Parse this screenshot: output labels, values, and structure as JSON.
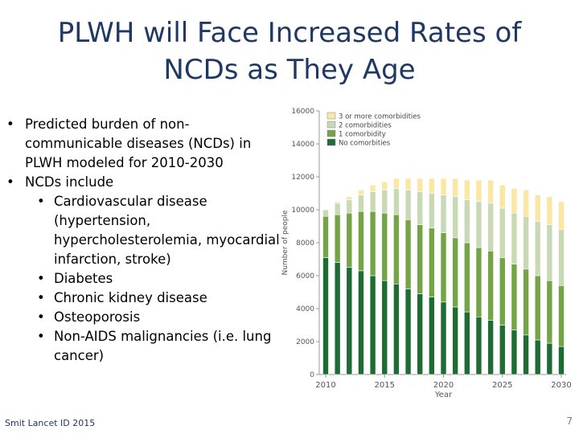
{
  "title": {
    "line1": "PLWH will Face Increased Rates of",
    "line2": "NCDs as They Age"
  },
  "bullets": [
    {
      "level": 1,
      "text": "Predicted burden of non-communicable diseases (NCDs) in PLWH modeled for 2010-2030"
    },
    {
      "level": 1,
      "text": "NCDs include"
    },
    {
      "level": 2,
      "text": "Cardiovascular disease (hypertension, hypercholesterolemia, myocardial infarction, stroke)"
    },
    {
      "level": 2,
      "text": "Diabetes"
    },
    {
      "level": 2,
      "text": "Chronic kidney disease"
    },
    {
      "level": 2,
      "text": "Osteoporosis"
    },
    {
      "level": 2,
      "text": "Non-AIDS malignancies (i.e. lung cancer)"
    }
  ],
  "footer": {
    "citation": "Smit Lancet ID 2015",
    "page_number": "7"
  },
  "chart_data": {
    "type": "bar",
    "stacked": true,
    "title": "",
    "xlabel": "Year",
    "ylabel": "Number of people",
    "ylim": [
      0,
      16000
    ],
    "yticks": [
      0,
      2000,
      4000,
      6000,
      8000,
      10000,
      12000,
      14000,
      16000
    ],
    "ytick_labels": [
      "0",
      "2000",
      "4000",
      "6000",
      "8000",
      "10000",
      "12000",
      "14000",
      "16000"
    ],
    "xticks": [
      2010,
      2015,
      2020,
      2025,
      2030
    ],
    "categories": [
      2010,
      2011,
      2012,
      2013,
      2014,
      2015,
      2016,
      2017,
      2018,
      2019,
      2020,
      2021,
      2022,
      2023,
      2024,
      2025,
      2026,
      2027,
      2028,
      2029,
      2030
    ],
    "legend_position": "top-left",
    "series": [
      {
        "name": "No comorbities",
        "color": "#1e6b34",
        "values": [
          7100,
          6800,
          6500,
          6300,
          6000,
          5700,
          5500,
          5200,
          4900,
          4700,
          4400,
          4100,
          3800,
          3500,
          3300,
          3000,
          2700,
          2400,
          2100,
          1900,
          1700
        ]
      },
      {
        "name": "1 comorbidity",
        "color": "#74a445",
        "values": [
          2500,
          2900,
          3300,
          3600,
          3900,
          4100,
          4200,
          4200,
          4200,
          4200,
          4200,
          4200,
          4200,
          4200,
          4200,
          4100,
          4000,
          4000,
          3900,
          3800,
          3700
        ]
      },
      {
        "name": "2 comorbidities",
        "color": "#c9d9b5",
        "values": [
          400,
          700,
          800,
          1000,
          1200,
          1400,
          1600,
          1800,
          2000,
          2100,
          2300,
          2500,
          2600,
          2800,
          2900,
          3000,
          3100,
          3200,
          3300,
          3400,
          3400
        ]
      },
      {
        "name": "3 or more comorbidities",
        "color": "#fbe6a3",
        "values": [
          0,
          100,
          200,
          300,
          400,
          500,
          600,
          700,
          800,
          900,
          1000,
          1100,
          1200,
          1300,
          1400,
          1400,
          1500,
          1600,
          1600,
          1700,
          1700
        ]
      }
    ]
  }
}
